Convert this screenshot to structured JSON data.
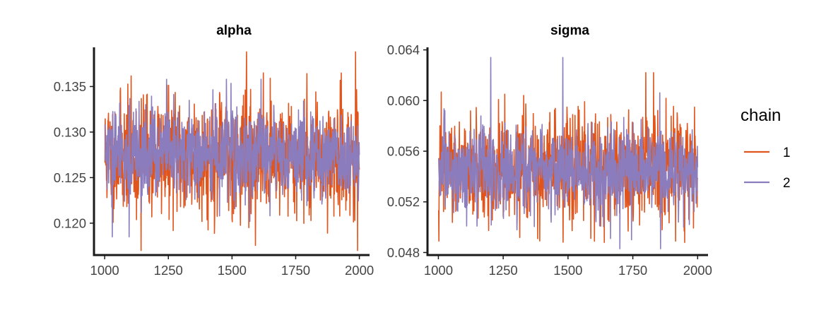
{
  "colors": {
    "chain_1": "#E1541B",
    "chain_2": "#8B7DBD",
    "axis": "#1a1a1a",
    "tick_text": "#444444"
  },
  "legend": {
    "title": "chain",
    "items": [
      {
        "label": "1",
        "color": "#E1541B"
      },
      {
        "label": "2",
        "color": "#8B7DBD"
      }
    ]
  },
  "chart_data": [
    {
      "type": "line",
      "title": "alpha",
      "xlabel": "",
      "ylabel": "",
      "x_range": [
        1001,
        2000
      ],
      "xlim": [
        958,
        2040
      ],
      "ylim": [
        0.1165,
        0.1393
      ],
      "x_ticks": [
        1000,
        1250,
        1500,
        1750,
        2000
      ],
      "x_tick_labels": [
        "1000",
        "1250",
        "1500",
        "1750",
        "2000"
      ],
      "y_ticks": [
        0.12,
        0.125,
        0.13,
        0.135
      ],
      "y_tick_labels": [
        "0.120",
        "0.125",
        "0.130",
        "0.135"
      ],
      "grid": false,
      "legend_position": "right",
      "series": [
        {
          "name": "1",
          "mean": 0.1275,
          "sd": 0.0032,
          "min": 0.117,
          "max": 0.1388
        },
        {
          "name": "2",
          "mean": 0.1275,
          "sd": 0.0024,
          "min": 0.1185,
          "max": 0.1358
        }
      ]
    },
    {
      "type": "line",
      "title": "sigma",
      "xlabel": "",
      "ylabel": "",
      "x_range": [
        1001,
        2000
      ],
      "xlim": [
        958,
        2040
      ],
      "ylim": [
        0.0478,
        0.0642
      ],
      "x_ticks": [
        1000,
        1250,
        1500,
        1750,
        2000
      ],
      "x_tick_labels": [
        "1000",
        "1250",
        "1500",
        "1750",
        "2000"
      ],
      "y_ticks": [
        0.048,
        0.052,
        0.056,
        0.06,
        0.064
      ],
      "y_tick_labels": [
        "0.048",
        "0.052",
        "0.056",
        "0.060",
        "0.064"
      ],
      "grid": false,
      "legend_position": "right",
      "series": [
        {
          "name": "1",
          "mean": 0.0545,
          "sd": 0.002,
          "min": 0.0488,
          "max": 0.0622
        },
        {
          "name": "2",
          "mean": 0.0545,
          "sd": 0.0017,
          "min": 0.0483,
          "max": 0.0634
        }
      ]
    }
  ]
}
